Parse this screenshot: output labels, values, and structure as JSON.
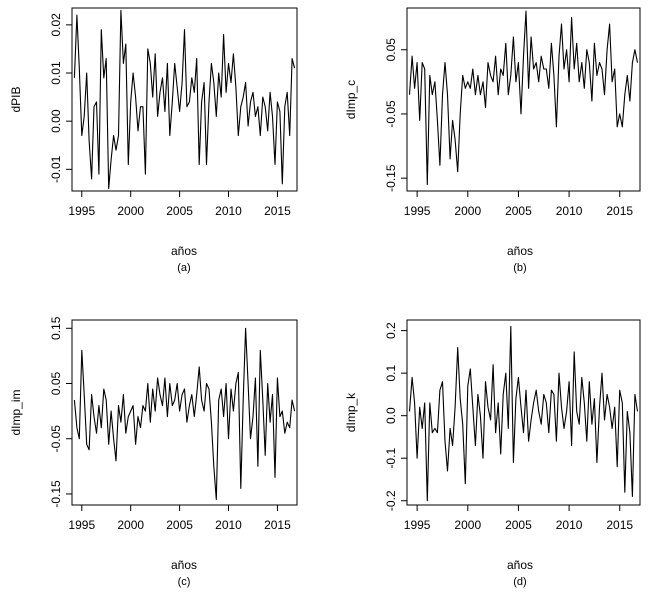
{
  "chart_data": [
    {
      "type": "line",
      "panel_label": "(a)",
      "xlabel": "años",
      "ylabel": "dPIB",
      "x_ticks": [
        1995,
        2000,
        2005,
        2010,
        2015
      ],
      "y_ticks": [
        -0.01,
        0.0,
        0.01,
        0.02
      ],
      "y_tick_labels": [
        "-0.01",
        "0.00",
        "0.01",
        "0.02"
      ],
      "xlim": [
        1994.0,
        2017.0
      ],
      "ylim": [
        -0.0145,
        0.0235
      ],
      "series": [
        {
          "x": [
            1994.25,
            1994.5,
            1994.75,
            1995.0,
            1995.25,
            1995.5,
            1995.75,
            1996.0,
            1996.25,
            1996.5,
            1996.75,
            1997.0,
            1997.25,
            1997.5,
            1997.75,
            1998.0,
            1998.25,
            1998.5,
            1998.75,
            1999.0,
            1999.25,
            1999.5,
            1999.75,
            2000.0,
            2000.25,
            2000.5,
            2000.75,
            2001.0,
            2001.25,
            2001.5,
            2001.75,
            2002.0,
            2002.25,
            2002.5,
            2002.75,
            2003.0,
            2003.25,
            2003.5,
            2003.75,
            2004.0,
            2004.25,
            2004.5,
            2004.75,
            2005.0,
            2005.25,
            2005.5,
            2005.75,
            2006.0,
            2006.25,
            2006.5,
            2006.75,
            2007.0,
            2007.25,
            2007.5,
            2007.75,
            2008.0,
            2008.25,
            2008.5,
            2008.75,
            2009.0,
            2009.25,
            2009.5,
            2009.75,
            2010.0,
            2010.25,
            2010.5,
            2010.75,
            2011.0,
            2011.25,
            2011.5,
            2011.75,
            2012.0,
            2012.25,
            2012.5,
            2012.75,
            2013.0,
            2013.25,
            2013.5,
            2013.75,
            2014.0,
            2014.25,
            2014.5,
            2014.75,
            2015.0,
            2015.25,
            2015.5,
            2015.75,
            2016.0,
            2016.25,
            2016.5,
            2016.75
          ],
          "y": [
            0.009,
            0.022,
            0.011,
            -0.003,
            0.001,
            0.01,
            -0.004,
            -0.012,
            0.003,
            0.004,
            -0.011,
            0.019,
            0.009,
            0.013,
            -0.014,
            -0.008,
            -0.003,
            -0.006,
            -0.003,
            0.023,
            0.012,
            0.016,
            -0.009,
            0.004,
            0.01,
            0.005,
            -0.002,
            0.003,
            0.003,
            -0.011,
            0.015,
            0.012,
            0.005,
            0.014,
            0.001,
            0.006,
            0.009,
            0.002,
            0.012,
            -0.003,
            0.004,
            0.012,
            0.007,
            0.002,
            0.008,
            0.019,
            0.003,
            0.004,
            0.009,
            0.006,
            0.013,
            -0.009,
            0.004,
            0.008,
            -0.009,
            0.004,
            0.012,
            0.008,
            0.001,
            0.01,
            0.005,
            0.018,
            0.006,
            0.012,
            0.008,
            0.014,
            0.007,
            -0.003,
            0.003,
            0.005,
            0.008,
            -0.001,
            0.004,
            0.006,
            0.001,
            0.003,
            -0.003,
            0.005,
            0.003,
            -0.002,
            0.006,
            0.001,
            -0.009,
            0.004,
            0.002,
            -0.013,
            0.003,
            0.006,
            -0.003,
            0.013,
            0.011
          ]
        }
      ]
    },
    {
      "type": "line",
      "panel_label": "(b)",
      "xlabel": "años",
      "ylabel": "dImp_c",
      "x_ticks": [
        1995,
        2000,
        2005,
        2010,
        2015
      ],
      "y_ticks": [
        -0.15,
        -0.05,
        0.05
      ],
      "y_tick_labels": [
        "-0.15",
        "-0.05",
        "0.05"
      ],
      "xlim": [
        1994.0,
        2017.0
      ],
      "ylim": [
        -0.17,
        0.115
      ],
      "series": [
        {
          "x": [
            1994.25,
            1994.5,
            1994.75,
            1995.0,
            1995.25,
            1995.5,
            1995.75,
            1996.0,
            1996.25,
            1996.5,
            1996.75,
            1997.0,
            1997.25,
            1997.5,
            1997.75,
            1998.0,
            1998.25,
            1998.5,
            1998.75,
            1999.0,
            1999.25,
            1999.5,
            1999.75,
            2000.0,
            2000.25,
            2000.5,
            2000.75,
            2001.0,
            2001.25,
            2001.5,
            2001.75,
            2002.0,
            2002.25,
            2002.5,
            2002.75,
            2003.0,
            2003.25,
            2003.5,
            2003.75,
            2004.0,
            2004.25,
            2004.5,
            2004.75,
            2005.0,
            2005.25,
            2005.5,
            2005.75,
            2006.0,
            2006.25,
            2006.5,
            2006.75,
            2007.0,
            2007.25,
            2007.5,
            2007.75,
            2008.0,
            2008.25,
            2008.5,
            2008.75,
            2009.0,
            2009.25,
            2009.5,
            2009.75,
            2010.0,
            2010.25,
            2010.5,
            2010.75,
            2011.0,
            2011.25,
            2011.5,
            2011.75,
            2012.0,
            2012.25,
            2012.5,
            2012.75,
            2013.0,
            2013.25,
            2013.5,
            2013.75,
            2014.0,
            2014.25,
            2014.5,
            2014.75,
            2015.0,
            2015.25,
            2015.5,
            2015.75,
            2016.0,
            2016.25,
            2016.5,
            2016.75
          ],
          "y": [
            -0.02,
            0.04,
            -0.01,
            0.03,
            -0.06,
            0.03,
            0.02,
            -0.16,
            0.01,
            -0.02,
            0.0,
            -0.06,
            -0.13,
            -0.02,
            0.03,
            -0.02,
            -0.12,
            -0.06,
            -0.09,
            -0.14,
            -0.05,
            0.01,
            -0.01,
            0.0,
            -0.01,
            0.02,
            -0.02,
            0.01,
            -0.02,
            0.0,
            -0.04,
            0.03,
            0.01,
            0.0,
            0.04,
            -0.02,
            0.02,
            0.01,
            0.06,
            -0.02,
            0.01,
            0.07,
            0.0,
            0.03,
            -0.05,
            0.04,
            0.11,
            -0.01,
            0.07,
            0.02,
            0.03,
            0.0,
            0.04,
            0.02,
            0.02,
            -0.01,
            0.06,
            0.01,
            -0.07,
            0.04,
            0.09,
            0.02,
            0.05,
            0.0,
            0.1,
            0.02,
            0.06,
            0.0,
            0.03,
            -0.01,
            0.05,
            0.03,
            -0.03,
            0.06,
            0.01,
            0.03,
            0.02,
            -0.02,
            0.05,
            0.09,
            0.0,
            0.02,
            -0.07,
            -0.05,
            -0.07,
            -0.02,
            0.01,
            -0.03,
            0.03,
            0.05,
            0.03
          ]
        }
      ]
    },
    {
      "type": "line",
      "panel_label": "(c)",
      "xlabel": "años",
      "ylabel": "dImp_im",
      "x_ticks": [
        1995,
        2000,
        2005,
        2010,
        2015
      ],
      "y_ticks": [
        -0.15,
        -0.05,
        0.05,
        0.15
      ],
      "y_tick_labels": [
        "-0.15",
        "-0.05",
        "0.05",
        "0.15"
      ],
      "xlim": [
        1994.0,
        2017.0
      ],
      "ylim": [
        -0.17,
        0.165
      ],
      "series": [
        {
          "x": [
            1994.25,
            1994.5,
            1994.75,
            1995.0,
            1995.25,
            1995.5,
            1995.75,
            1996.0,
            1996.25,
            1996.5,
            1996.75,
            1997.0,
            1997.25,
            1997.5,
            1997.75,
            1998.0,
            1998.25,
            1998.5,
            1998.75,
            1999.0,
            1999.25,
            1999.5,
            1999.75,
            2000.0,
            2000.25,
            2000.5,
            2000.75,
            2001.0,
            2001.25,
            2001.5,
            2001.75,
            2002.0,
            2002.25,
            2002.5,
            2002.75,
            2003.0,
            2003.25,
            2003.5,
            2003.75,
            2004.0,
            2004.25,
            2004.5,
            2004.75,
            2005.0,
            2005.25,
            2005.5,
            2005.75,
            2006.0,
            2006.25,
            2006.5,
            2006.75,
            2007.0,
            2007.25,
            2007.5,
            2007.75,
            2008.0,
            2008.25,
            2008.5,
            2008.75,
            2009.0,
            2009.25,
            2009.5,
            2009.75,
            2010.0,
            2010.25,
            2010.5,
            2010.75,
            2011.0,
            2011.25,
            2011.5,
            2011.75,
            2012.0,
            2012.25,
            2012.5,
            2012.75,
            2013.0,
            2013.25,
            2013.5,
            2013.75,
            2014.0,
            2014.25,
            2014.5,
            2014.75,
            2015.0,
            2015.25,
            2015.5,
            2015.75,
            2016.0,
            2016.25,
            2016.5,
            2016.75
          ],
          "y": [
            0.02,
            -0.03,
            -0.05,
            0.11,
            0.03,
            -0.06,
            -0.07,
            0.03,
            -0.01,
            -0.04,
            0.01,
            -0.03,
            0.04,
            0.02,
            -0.06,
            0.0,
            -0.05,
            -0.09,
            0.01,
            -0.02,
            0.03,
            -0.04,
            -0.01,
            0.0,
            0.01,
            -0.06,
            -0.01,
            -0.03,
            0.01,
            0.0,
            0.05,
            -0.02,
            0.04,
            0.0,
            0.06,
            0.03,
            0.01,
            0.06,
            -0.01,
            0.05,
            0.01,
            0.02,
            0.05,
            0.0,
            0.03,
            0.04,
            -0.02,
            0.01,
            0.03,
            -0.01,
            0.03,
            0.08,
            0.02,
            0.0,
            0.05,
            0.04,
            -0.02,
            -0.1,
            -0.16,
            0.02,
            0.04,
            -0.01,
            0.05,
            -0.05,
            0.04,
            0.0,
            0.05,
            0.07,
            -0.14,
            0.02,
            0.15,
            0.05,
            -0.05,
            -0.01,
            0.06,
            -0.1,
            0.11,
            0.02,
            -0.08,
            0.05,
            -0.02,
            0.03,
            -0.12,
            0.06,
            -0.01,
            0.0,
            -0.04,
            -0.02,
            -0.03,
            0.02,
            0.0
          ]
        }
      ]
    },
    {
      "type": "line",
      "panel_label": "(d)",
      "xlabel": "años",
      "ylabel": "dImp_k",
      "x_ticks": [
        1995,
        2000,
        2005,
        2010,
        2015
      ],
      "y_ticks": [
        -0.2,
        -0.1,
        0.0,
        0.1,
        0.2
      ],
      "y_tick_labels": [
        "-0.2",
        "-0.1",
        "0.0",
        "0.1",
        "0.2"
      ],
      "xlim": [
        1994.0,
        2017.0
      ],
      "ylim": [
        -0.21,
        0.225
      ],
      "series": [
        {
          "x": [
            1994.25,
            1994.5,
            1994.75,
            1995.0,
            1995.25,
            1995.5,
            1995.75,
            1996.0,
            1996.25,
            1996.5,
            1996.75,
            1997.0,
            1997.25,
            1997.5,
            1997.75,
            1998.0,
            1998.25,
            1998.5,
            1998.75,
            1999.0,
            1999.25,
            1999.5,
            1999.75,
            2000.0,
            2000.25,
            2000.5,
            2000.75,
            2001.0,
            2001.25,
            2001.5,
            2001.75,
            2002.0,
            2002.25,
            2002.5,
            2002.75,
            2003.0,
            2003.25,
            2003.5,
            2003.75,
            2004.0,
            2004.25,
            2004.5,
            2004.75,
            2005.0,
            2005.25,
            2005.5,
            2005.75,
            2006.0,
            2006.25,
            2006.5,
            2006.75,
            2007.0,
            2007.25,
            2007.5,
            2007.75,
            2008.0,
            2008.25,
            2008.5,
            2008.75,
            2009.0,
            2009.25,
            2009.5,
            2009.75,
            2010.0,
            2010.25,
            2010.5,
            2010.75,
            2011.0,
            2011.25,
            2011.5,
            2011.75,
            2012.0,
            2012.25,
            2012.5,
            2012.75,
            2013.0,
            2013.25,
            2013.5,
            2013.75,
            2014.0,
            2014.25,
            2014.5,
            2014.75,
            2015.0,
            2015.25,
            2015.5,
            2015.75,
            2016.0,
            2016.25,
            2016.5,
            2016.75
          ],
          "y": [
            0.01,
            0.09,
            0.03,
            -0.1,
            0.02,
            -0.03,
            0.03,
            -0.2,
            0.03,
            -0.04,
            -0.03,
            -0.04,
            0.06,
            0.08,
            -0.06,
            -0.13,
            -0.03,
            -0.07,
            0.02,
            0.16,
            0.04,
            -0.02,
            -0.16,
            0.07,
            0.11,
            0.02,
            -0.07,
            0.05,
            0.0,
            -0.1,
            0.08,
            0.02,
            -0.01,
            0.12,
            -0.04,
            0.03,
            -0.09,
            0.05,
            0.1,
            -0.03,
            0.21,
            -0.11,
            0.04,
            0.09,
            0.02,
            -0.04,
            0.06,
            -0.06,
            -0.01,
            0.03,
            0.06,
            0.01,
            -0.02,
            0.05,
            0.03,
            -0.04,
            0.06,
            0.05,
            -0.06,
            0.1,
            0.02,
            -0.03,
            0.01,
            0.08,
            -0.07,
            0.15,
            0.01,
            -0.02,
            0.09,
            0.03,
            -0.06,
            0.08,
            -0.02,
            0.04,
            -0.11,
            0.02,
            0.1,
            -0.01,
            0.05,
            0.02,
            -0.03,
            0.02,
            -0.12,
            0.06,
            0.03,
            -0.18,
            0.01,
            -0.04,
            -0.19,
            0.05,
            0.01
          ]
        }
      ]
    }
  ]
}
